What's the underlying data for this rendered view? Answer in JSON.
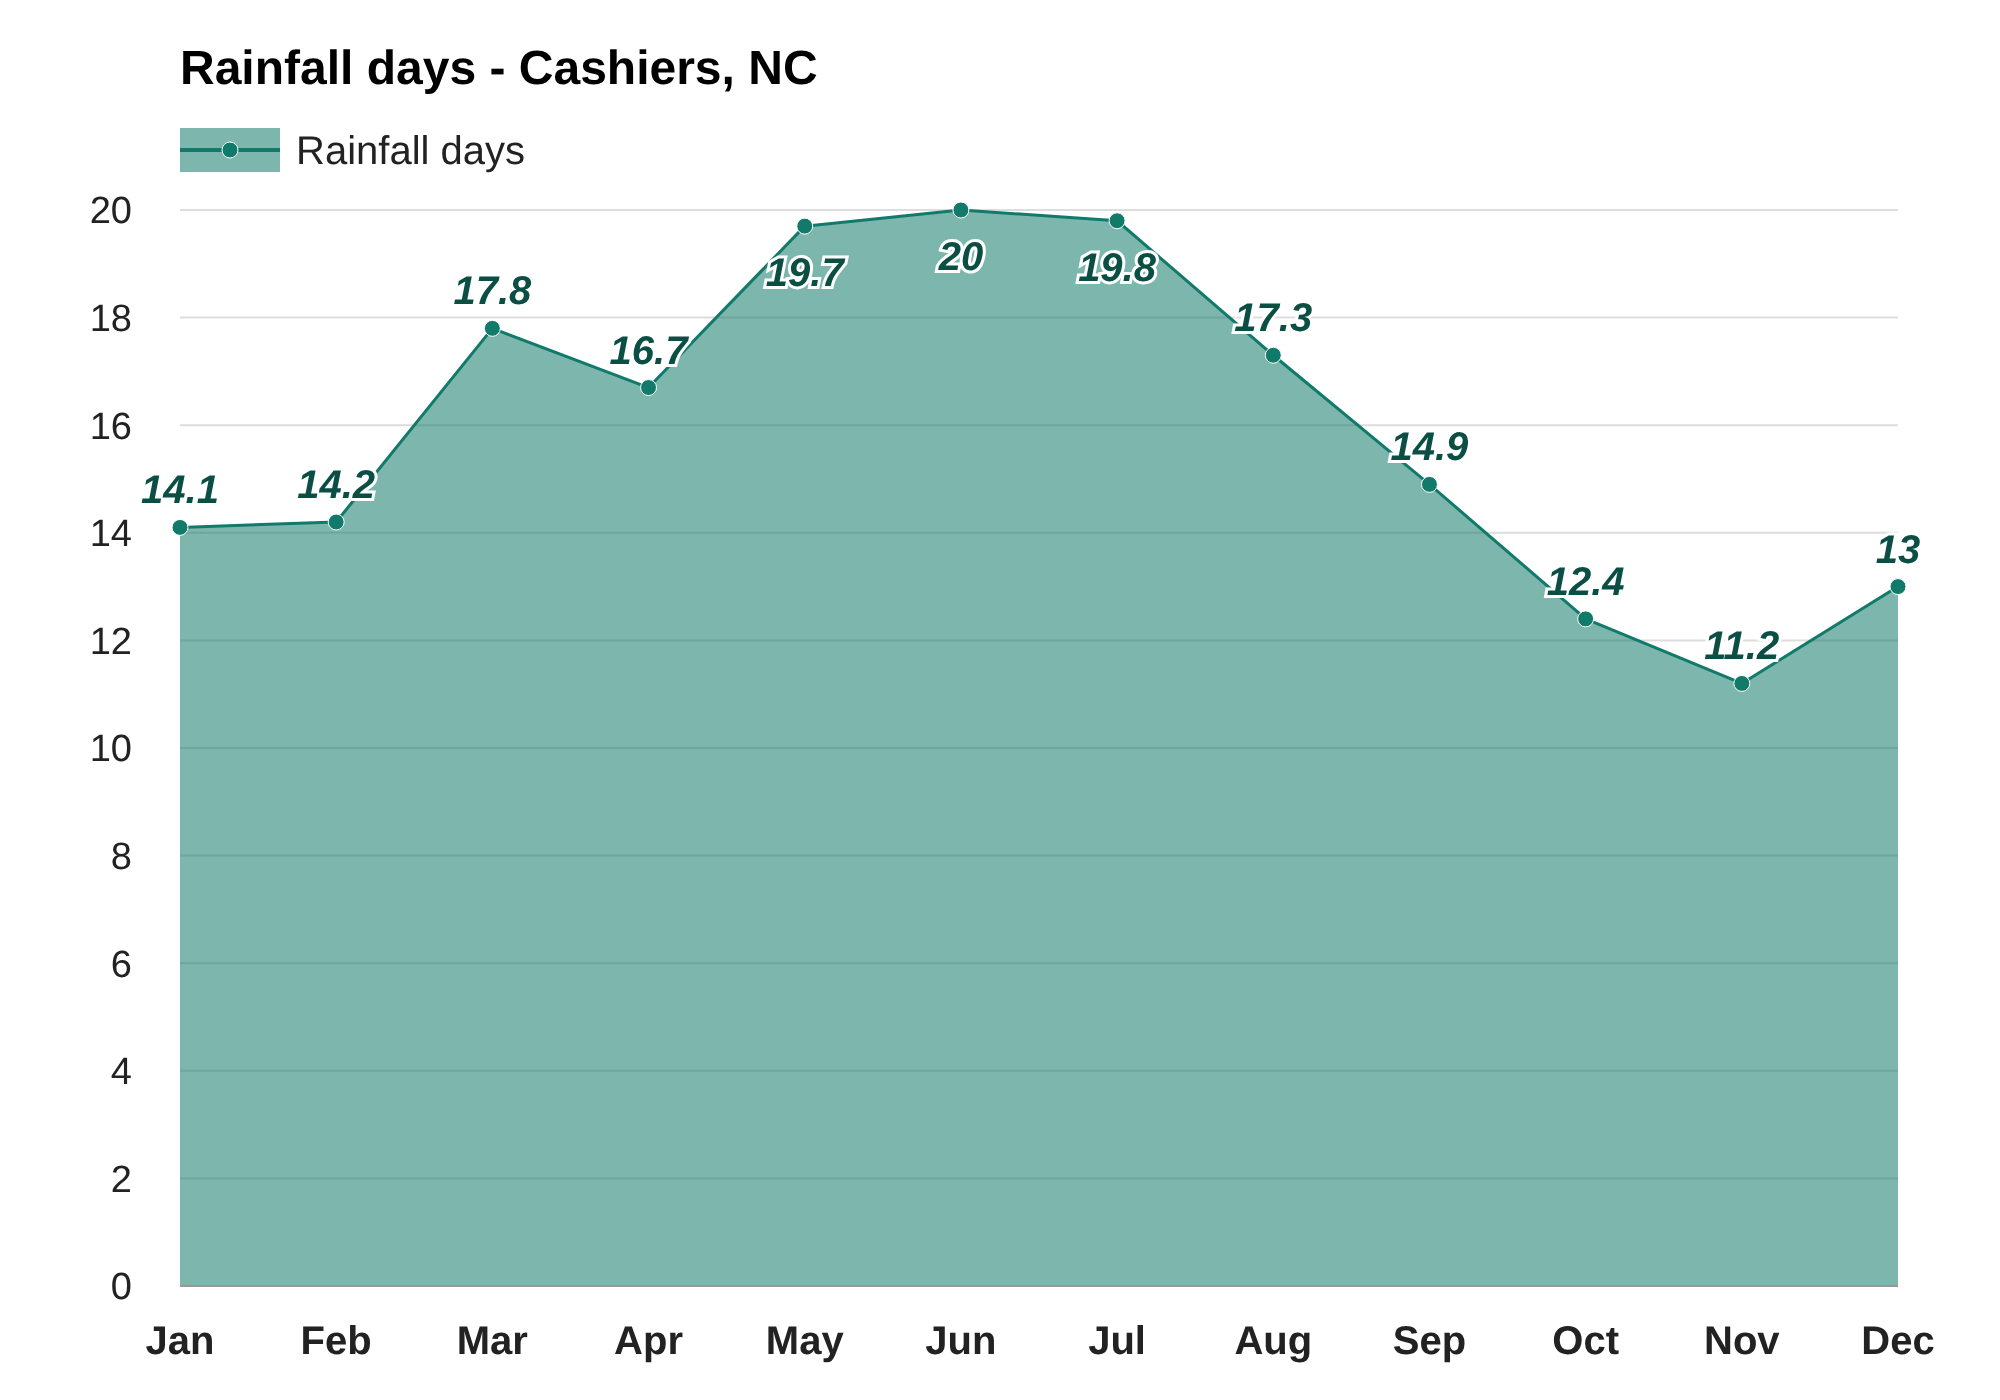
{
  "chart_data": {
    "type": "area",
    "title": "Rainfall days - Cashiers, NC",
    "categories": [
      "Jan",
      "Feb",
      "Mar",
      "Apr",
      "May",
      "Jun",
      "Jul",
      "Aug",
      "Sep",
      "Oct",
      "Nov",
      "Dec"
    ],
    "series": [
      {
        "name": "Rainfall days",
        "color": "#127a6a",
        "values": [
          14.1,
          14.2,
          17.8,
          16.7,
          19.7,
          20,
          19.8,
          17.3,
          14.9,
          12.4,
          11.2,
          13
        ]
      }
    ],
    "ylim": [
      0,
      20
    ],
    "yticks": [
      0,
      2,
      4,
      6,
      8,
      10,
      12,
      14,
      16,
      18,
      20
    ],
    "grid": "y",
    "legend": "top left",
    "marker": "circle",
    "data_labels": true
  }
}
